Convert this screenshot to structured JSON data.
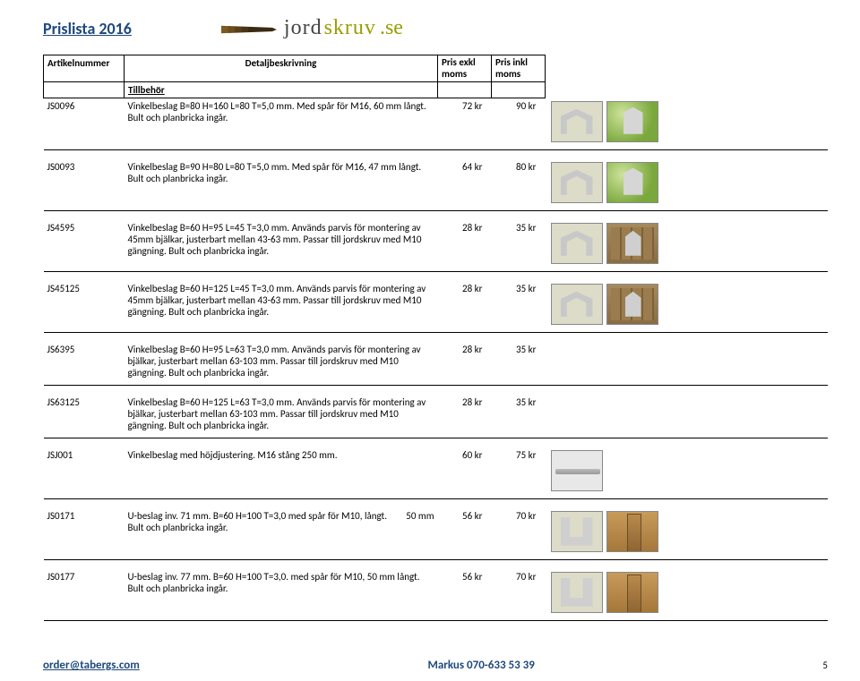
{
  "page_title": "Prislista 2016",
  "logo": {
    "part1": "jord",
    "part2": "skruv",
    "tld": ".se"
  },
  "columns": {
    "art": "Artikelnummer",
    "desc": "Detaljbeskrivning",
    "pris_exkl": "Pris exkl",
    "pris_inkl": "Pris inkl",
    "moms": "moms"
  },
  "section_heading": "Tillbehör",
  "products": [
    {
      "art": "JS0096",
      "desc": "Vinkelbeslag B=80 H=160 L=80 T=5,0 mm. Med spår för M16, 60 mm långt. Bult och planbricka ingår.",
      "exkl": "72 kr",
      "inkl": "90 kr",
      "images": [
        "bracket",
        "grass"
      ]
    },
    {
      "art": "JS0093",
      "desc": "Vinkelbeslag B=90 H=80 L=80 T=5,0 mm. Med spår för M16, 47 mm långt. Bult och planbricka ingår.",
      "exkl": "64 kr",
      "inkl": "80 kr",
      "images": [
        "bracket",
        "grass"
      ]
    },
    {
      "art": "JS4595",
      "desc": "Vinkelbeslag B=60 H=95 L=45 T=3,0 mm. Används parvis för montering av 45mm bjälkar, justerbart mellan 43-63 mm. Passar till jordskruv med M10 gängning. Bult och planbricka ingår.",
      "exkl": "28 kr",
      "inkl": "35 kr",
      "images": [
        "bracket",
        "deck"
      ]
    },
    {
      "art": "JS45125",
      "desc": "Vinkelbeslag B=60 H=125 L=45 T=3,0 mm. Används parvis för montering av 45mm bjälkar, justerbart mellan 43-63 mm. Passar till jordskruv med M10 gängning. Bult och planbricka ingår.",
      "exkl": "28 kr",
      "inkl": "35 kr",
      "images": [
        "bracket",
        "deck"
      ]
    },
    {
      "art": "JS6395",
      "desc": "Vinkelbeslag B=60 H=95 L=63 T=3,0 mm. Används parvis för montering av bjälkar, justerbart mellan 63-103 mm. Passar till jordskruv med M10 gängning. Bult och planbricka ingår.",
      "exkl": "28 kr",
      "inkl": "35 kr",
      "images": []
    },
    {
      "art": "JS63125",
      "desc": "Vinkelbeslag B=60 H=125 L=63 T=3,0 mm. Används parvis för montering av bjälkar, justerbart mellan 63-103 mm. Passar till jordskruv med M10 gängning. Bult och planbricka ingår.",
      "exkl": "28 kr",
      "inkl": "35 kr",
      "images": []
    },
    {
      "art": "JSJ001",
      "desc": "Vinkelbeslag med höjdjustering. M16 stång 250 mm.",
      "exkl": "60 kr",
      "inkl": "75 kr",
      "images": [
        "rod"
      ]
    },
    {
      "art": "JS0171",
      "desc": "U-beslag inv. 71 mm. B=60 H=100 T=3,0 med spår för M10, långt. Bult och planbricka ingår.",
      "extra_dim": "50 mm",
      "exkl": "56 kr",
      "inkl": "70 kr",
      "images": [
        "ubolt",
        "post"
      ]
    },
    {
      "art": "JS0177",
      "desc": "U-beslag inv. 77 mm. B=60 H=100 T=3,0. med  spår för M10, 50 mm långt. Bult och planbricka ingår.",
      "exkl": "56 kr",
      "inkl": "70 kr",
      "images": [
        "ubolt",
        "post"
      ]
    }
  ],
  "footer": {
    "email": "order@tabergs.com",
    "contact": "Markus 070-633 53 39",
    "page_number": "5"
  },
  "colors": {
    "accent": "#1f497d",
    "border": "#000000",
    "logo_accent": "#9c9c00"
  }
}
